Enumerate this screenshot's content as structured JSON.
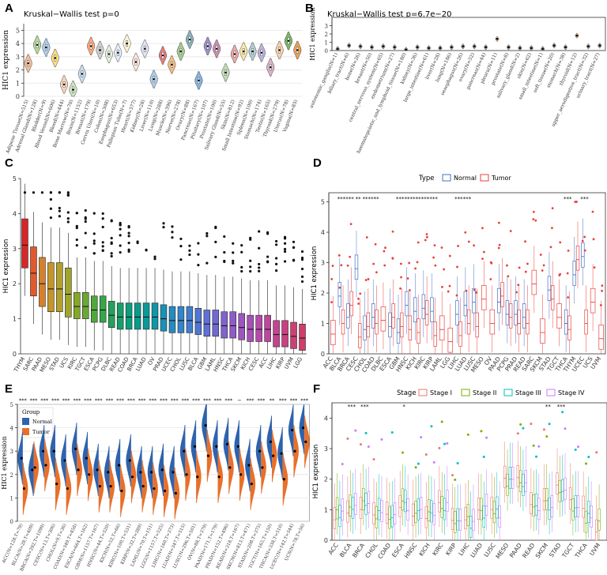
{
  "figure": {
    "panels": [
      "A",
      "B",
      "C",
      "D",
      "E",
      "F"
    ]
  },
  "chart_data": [
    {
      "id": "A",
      "type": "violin",
      "title": "Kruskal−Wallis test p=0",
      "xlabel": "",
      "ylabel": "HIC1 expression",
      "ylim": [
        0,
        5.5
      ],
      "yticks": [
        0,
        1,
        2,
        3,
        4,
        5
      ],
      "categories": [
        "Adipose Tissue(N=515)",
        "Adrenal Gland(N=128)",
        "Bladder(N=9)",
        "Blood Vessel(N=606)",
        "Blood(N=444)",
        "Bone Marrow(N=70)",
        "Brain(N=1152)",
        "Breast(N=179)",
        "Cervix Uteri(N=10)",
        "Colon(N=308)",
        "Esophagus(N=653)",
        "Fallopian Tube(N=7)",
        "Heart(N=377)",
        "Kidney(N=28)",
        "Liver(N=110)",
        "Lung(N=288)",
        "Muscle(N=396)",
        "Nerve(N=278)",
        "Ovary(N=88)",
        "Pancreas(N=167)",
        "Pituitary(N=107)",
        "Prostate(N=100)",
        "Salivary Gland(N=55)",
        "Skin(N=812)",
        "Small Intestine(N=92)",
        "Spleen(N=100)",
        "Stomach(N=174)",
        "Testis(N=165)",
        "Thyroid(N=279)",
        "Uterus(N=78)",
        "Vagina(N=85)"
      ],
      "medians": [
        2.5,
        3.9,
        3.7,
        2.9,
        0.9,
        0.5,
        1.7,
        3.8,
        3.5,
        3.2,
        3.3,
        4.0,
        2.6,
        3.6,
        1.3,
        3.1,
        2.4,
        3.4,
        4.3,
        1.2,
        3.8,
        3.6,
        1.8,
        3.2,
        3.4,
        3.4,
        3.3,
        2.2,
        3.5,
        4.2,
        3.5
      ]
    },
    {
      "id": "B",
      "type": "violin",
      "title": "Kruskal−Wallis test p=6.7e−20",
      "xlabel": "",
      "ylabel": "HIC1 expression",
      "ylim": [
        0,
        4
      ],
      "yticks": [
        0,
        1,
        2,
        3
      ],
      "categories": [
        "autonomic_ganglia(N=1)",
        "biliary_tract(N=6)",
        "bone(N=26)",
        "breast(N=50)",
        "central_nervous_system(N=65)",
        "endometrium(N=27)",
        "haematopoietic_and_lymphoid_tissue(N=180)",
        "kidney(N=36)",
        "large_intestine(N=61)",
        "liver(N=28)",
        "lung(N=186)",
        "oesophagus(N=26)",
        "ovary(N=52)",
        "pancreas(N=44)",
        "pleura(N=11)",
        "prostate(N=8)",
        "salivary_gland(N=2)",
        "skin(N=62)",
        "small_intestine(N=1)",
        "soft_tissue(N=20)",
        "stomach(N=38)",
        "thyroid(N=12)",
        "upper_aerodigestive_tract(N=32)",
        "urinary_tract(N=27)"
      ],
      "medians": [
        0.2,
        0.6,
        0.5,
        0.4,
        0.5,
        0.4,
        0.1,
        0.4,
        0.3,
        0.3,
        0.4,
        0.5,
        0.5,
        0.4,
        1.4,
        0.4,
        0.3,
        0.3,
        0.2,
        0.6,
        0.4,
        1.8,
        0.5,
        0.6
      ]
    },
    {
      "id": "C",
      "type": "boxplot",
      "title": "",
      "xlabel": "",
      "ylabel": "HIC1 expression",
      "ylim": [
        0,
        5
      ],
      "yticks": [
        0,
        1,
        2,
        3,
        4,
        5
      ],
      "categories": [
        "THYM",
        "SARC",
        "PAAD",
        "MESO",
        "STAD",
        "UCS",
        "KIRC",
        "TGCT",
        "ESCA",
        "PCPG",
        "DLBC",
        "READ",
        "COAD",
        "BRCA",
        "LUAD",
        "OV",
        "PRAD",
        "UCEC",
        "CHOL",
        "LUSC",
        "BLCA",
        "GBM",
        "LAML",
        "HNSC",
        "THCA",
        "SKCM",
        "KICH",
        "CESC",
        "ACC",
        "LIHC",
        "KIRP",
        "UVM",
        "LGG"
      ],
      "medians": [
        3.1,
        2.3,
        2.0,
        1.85,
        1.85,
        1.7,
        1.35,
        1.35,
        1.25,
        1.25,
        1.1,
        1.05,
        1.05,
        1.05,
        1.05,
        1.05,
        1.0,
        0.95,
        0.95,
        0.95,
        0.9,
        0.85,
        0.85,
        0.8,
        0.8,
        0.75,
        0.7,
        0.7,
        0.7,
        0.55,
        0.55,
        0.5,
        0.45
      ]
    },
    {
      "id": "D",
      "type": "boxplot",
      "title": "",
      "xlabel": "",
      "ylabel": "HIC1 expression",
      "ylim": [
        0,
        5.3
      ],
      "yticks": [
        0,
        1,
        2,
        3,
        4,
        5
      ],
      "legend_title": "Type",
      "legend": [
        "Normal",
        "Tumor"
      ],
      "colors": {
        "Normal": "#4472c4",
        "Tumor": "#e8413c"
      },
      "categories": [
        "ACC",
        "BLCA",
        "BRCA",
        "CESC",
        "CHOL",
        "COAD",
        "DLBC",
        "ESCA",
        "GBM",
        "HNSC",
        "KICH",
        "KIRC",
        "KIRP",
        "LAML",
        "LGG",
        "LIHC",
        "LUAD",
        "LUSC",
        "MESO",
        "OV",
        "PAAD",
        "PCPG",
        "PRAD",
        "READ",
        "SARC",
        "SKCM",
        "STAD",
        "TGCT",
        "THCA",
        "THYM",
        "UCEC",
        "UCS",
        "UVM"
      ],
      "significance": [
        "",
        "***",
        "***",
        "**",
        "***",
        "***",
        "",
        "",
        "***",
        "***",
        "***",
        "***",
        "***",
        "",
        "",
        "***",
        "***",
        "",
        "",
        "",
        "",
        "",
        "",
        "",
        "",
        "",
        "",
        "",
        "***",
        "",
        "***",
        "",
        ""
      ],
      "normal_medians": [
        null,
        1.9,
        1.2,
        2.8,
        0.8,
        1.2,
        null,
        0.9,
        0.7,
        1.6,
        1.4,
        1.5,
        1.4,
        null,
        null,
        1.3,
        1.6,
        1.7,
        null,
        null,
        1.7,
        1.3,
        1.3,
        1.2,
        null,
        null,
        2.1,
        null,
        1.0,
        2.6,
        3.2,
        null,
        null
      ],
      "tumor_medians": [
        0.65,
        1.0,
        1.6,
        0.55,
        0.9,
        1.0,
        1.1,
        1.2,
        0.9,
        0.8,
        0.7,
        1.3,
        0.6,
        0.8,
        0.4,
        0.6,
        1.0,
        0.9,
        1.8,
        1.0,
        1.9,
        1.2,
        1.0,
        1.0,
        2.3,
        0.7,
        1.8,
        1.2,
        0.8,
        3.1,
        1.0,
        1.7,
        0.5
      ]
    },
    {
      "id": "E",
      "type": "split-violin",
      "title": "",
      "xlabel": "",
      "ylabel": "HIC1 expression",
      "ylim": [
        0,
        5
      ],
      "yticks": [
        0,
        1,
        2,
        3,
        4,
        5
      ],
      "legend_title": "Group",
      "legend": [
        "Normal",
        "Tumor"
      ],
      "colors": {
        "Normal": "#2e63ad",
        "Tumor": "#e8702a"
      },
      "categories": [
        "ACC(N=128,T=79)",
        "BLCA(N=28,T=409)",
        "BRCA(N=292,T=1099)",
        "CESC(N=13,T=306)",
        "CHOL(N=9,T=36)",
        "COAD(N=349,T=458)",
        "ESCA(N=664,T=162)",
        "GBM(N=1157,T=167)",
        "HNSC(N=44,T=520)",
        "KICH(N=52,T=66)",
        "KIRC(N=100,T=531)",
        "KIRP(N=32,T=289)",
        "LAML(N=70,T=151)",
        "LGG(N=1157,T=525)",
        "LIHC(N=160,T=373)",
        "LUAD(N=347,T=515)",
        "LUSC(N=296,T=501)",
        "OV(N=88,T=379)",
        "PAAD(N=171,T=179)",
        "PRAD(N=152,T=496)",
        "READ(N=318,T=167)",
        "SKCM(N=813,T=471)",
        "STAD(N=208,T=375)",
        "TGCT(N=165,T=150)",
        "THCA(N=338,T=510)",
        "UCEC(N=142,T=544)",
        "UCS(N=78,T=56)"
      ],
      "significance": [
        "***",
        "***",
        "***",
        "***",
        "***",
        "***",
        "***",
        "***",
        "***",
        "***",
        "***",
        "***",
        "***",
        "***",
        "***",
        "***",
        "***",
        "***",
        "***",
        "***",
        "−",
        "***",
        "***",
        "**",
        "***",
        "***",
        "***"
      ],
      "normal_medians": [
        2.7,
        2.2,
        3.0,
        3.0,
        2.6,
        3.1,
        2.7,
        2.2,
        2.1,
        2.4,
        2.6,
        2.1,
        2.1,
        2.2,
        2.1,
        3.0,
        3.2,
        4.1,
        3.2,
        3.3,
        3.2,
        2.4,
        3.0,
        3.4,
        2.9,
        3.9,
        4.0
      ],
      "tumor_medians": [
        1.4,
        2.3,
        2.4,
        1.6,
        1.4,
        2.2,
        2.0,
        1.5,
        1.5,
        1.3,
        1.9,
        1.5,
        1.4,
        1.3,
        1.2,
        2.0,
        1.9,
        2.8,
        1.9,
        2.3,
        2.0,
        1.6,
        2.3,
        2.8,
        1.8,
        3.0,
        3.4
      ]
    },
    {
      "id": "F",
      "type": "boxplot",
      "title": "",
      "xlabel": "",
      "ylabel": "HIC1 expression",
      "ylim": [
        0,
        4.5
      ],
      "yticks": [
        0,
        1,
        2,
        3,
        4
      ],
      "legend_title": "Stage",
      "legend": [
        "Stage I",
        "Stage II",
        "Stage III",
        "Stage IV"
      ],
      "colors": {
        "Stage I": "#f0756e",
        "Stage II": "#7cae00",
        "Stage III": "#00bfc4",
        "Stage IV": "#c77cff"
      },
      "categories": [
        "ACC",
        "BLCA",
        "BRCA",
        "CHOL",
        "COAD",
        "ESCA",
        "HNSC",
        "KICH",
        "KIRC",
        "KIRP",
        "LIHC",
        "LUAD",
        "LUSC",
        "MESO",
        "PAAD",
        "READ",
        "SKCM",
        "STAD",
        "TGCT",
        "THCA",
        "UVM"
      ],
      "significance": [
        "",
        "***",
        "***",
        "",
        "",
        "*",
        "",
        "",
        "",
        "",
        "",
        "",
        "",
        "",
        "",
        "",
        "**",
        "***",
        "",
        "",
        ""
      ],
      "medians": [
        0.8,
        1.0,
        1.1,
        0.9,
        0.9,
        1.1,
        0.8,
        0.7,
        1.2,
        0.6,
        0.6,
        0.9,
        0.9,
        1.9,
        1.9,
        1.0,
        1.1,
        1.6,
        1.1,
        0.8,
        0.5
      ]
    }
  ]
}
